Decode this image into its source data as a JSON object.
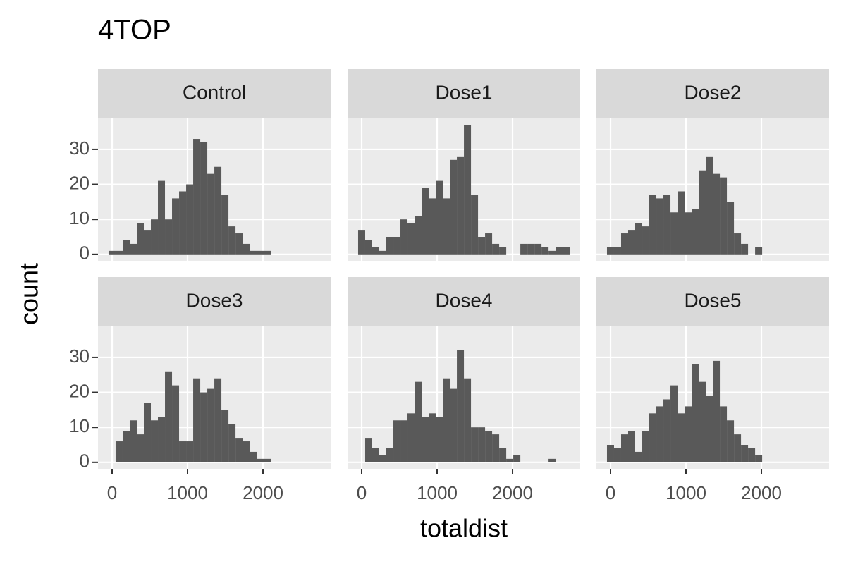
{
  "chart_data": {
    "type": "histogram",
    "title": "4TOP",
    "xlabel": "totaldist",
    "ylabel": "count",
    "color": "#595959",
    "grid": true,
    "bins": [
      -47,
      46.5,
      140,
      233.5,
      327,
      420.5,
      514,
      607.5,
      701,
      794.5,
      888,
      981.5,
      1075,
      1168.5,
      1262,
      1355.5,
      1449,
      1542.5,
      1636,
      1729.5,
      1823,
      1916.5,
      2010,
      2103.5,
      2197,
      2290.5,
      2384,
      2477.5,
      2571,
      2664.5,
      2758
    ],
    "facets": [
      {
        "name": "Control",
        "values": [
          1,
          1,
          4,
          3,
          9,
          7,
          10,
          21,
          10,
          16,
          18,
          20,
          33,
          32,
          23,
          25,
          17,
          8,
          6,
          3,
          1,
          1,
          1,
          0,
          0,
          0,
          0,
          0,
          0,
          0
        ]
      },
      {
        "name": "Dose1",
        "values": [
          7,
          4,
          2,
          1,
          5,
          5,
          10,
          9,
          11,
          19,
          16,
          21,
          16,
          27,
          28,
          37,
          17,
          5,
          6,
          3,
          2,
          0,
          0,
          3,
          3,
          3,
          2,
          1,
          2,
          2
        ]
      },
      {
        "name": "Dose2",
        "values": [
          2,
          2,
          6,
          7,
          9,
          8,
          17,
          16,
          17,
          12,
          18,
          12,
          13,
          24,
          28,
          23,
          22,
          15,
          6,
          3,
          0,
          2,
          0,
          0,
          0,
          0,
          0,
          0,
          0,
          0
        ]
      },
      {
        "name": "Dose3",
        "values": [
          0,
          6,
          9,
          12,
          8,
          17,
          12,
          13,
          26,
          22,
          6,
          6,
          24,
          20,
          21,
          24,
          15,
          11,
          7,
          6,
          3,
          1,
          1,
          0,
          0,
          0,
          0,
          0,
          0,
          0
        ]
      },
      {
        "name": "Dose4",
        "values": [
          0,
          7,
          4,
          2,
          4,
          12,
          12,
          14,
          23,
          13,
          14,
          13,
          24,
          21,
          32,
          24,
          10,
          10,
          9,
          8,
          4,
          1,
          2,
          0,
          0,
          0,
          0,
          1,
          0,
          0
        ]
      },
      {
        "name": "Dose5",
        "values": [
          5,
          4,
          8,
          9,
          3,
          9,
          14,
          16,
          18,
          22,
          14,
          16,
          28,
          23,
          19,
          29,
          16,
          12,
          8,
          5,
          4,
          2,
          0,
          0,
          0,
          0,
          0,
          0,
          0,
          0
        ]
      }
    ],
    "xlim": [
      -187,
      2897
    ],
    "ylim": [
      -1.85,
      38.85
    ],
    "xticks": [
      0,
      1000,
      2000
    ],
    "yticks": [
      0,
      10,
      20,
      30
    ]
  }
}
